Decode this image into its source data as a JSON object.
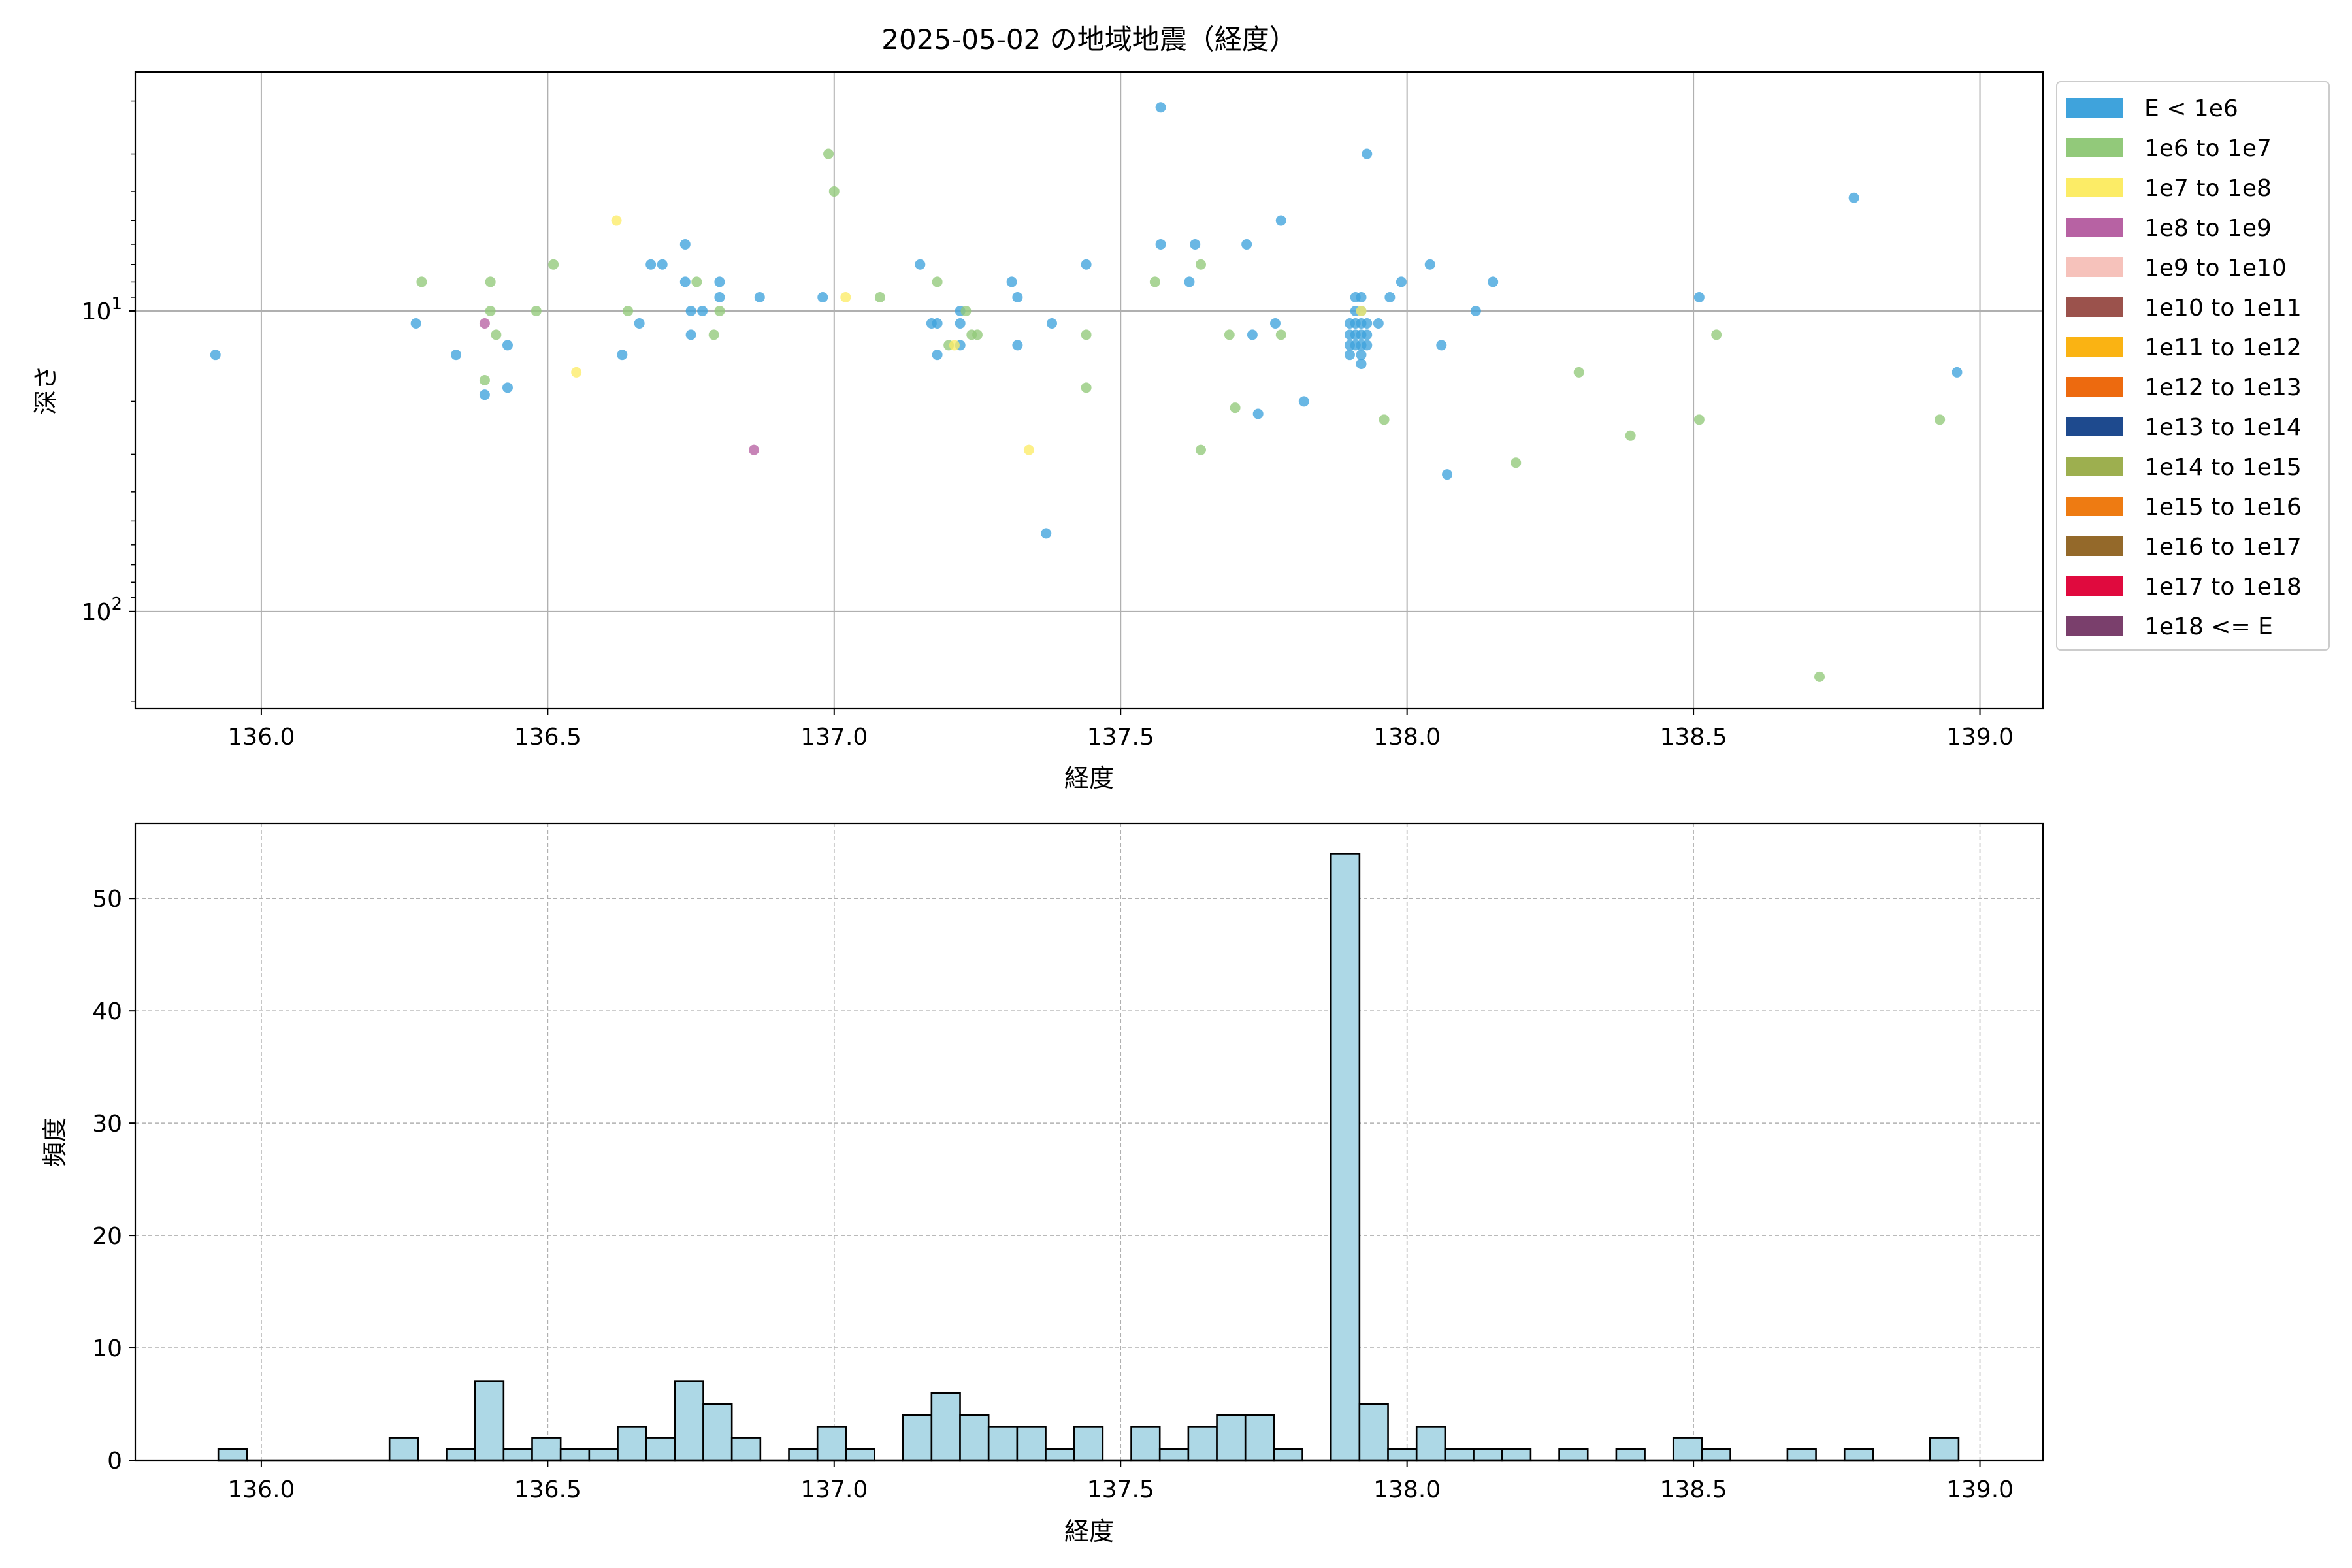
{
  "chart_data": [
    {
      "type": "scatter",
      "title": "2025-05-02 の地域地震（経度）",
      "xlabel": "経度",
      "ylabel": "深さ",
      "yscale": "log",
      "yinverted": true,
      "xlim": [
        135.78,
        139.11
      ],
      "ylim": [
        210,
        1.6
      ],
      "xticks": [
        "136.0",
        "136.5",
        "137.0",
        "137.5",
        "138.0",
        "138.5",
        "139.0"
      ],
      "yticks": [
        {
          "value": 10,
          "base": "10",
          "exp": "1"
        },
        {
          "value": 100,
          "base": "10",
          "exp": "2"
        }
      ],
      "grid": true,
      "legend": {
        "placement": "outside-right",
        "entries": [
          {
            "label": "E < 1e6",
            "color": "#3fa3dc"
          },
          {
            "label": "1e6 to 1e7",
            "color": "#92c97a"
          },
          {
            "label": "1e7 to 1e8",
            "color": "#fcec66"
          },
          {
            "label": "1e8 to 1e9",
            "color": "#b762a3"
          },
          {
            "label": "1e9 to 1e10",
            "color": "#f6c2bb"
          },
          {
            "label": "1e10 to 1e11",
            "color": "#9b524c"
          },
          {
            "label": "1e11 to 1e12",
            "color": "#fab313"
          },
          {
            "label": "1e12 to 1e13",
            "color": "#ed6a0f"
          },
          {
            "label": "1e13 to 1e14",
            "color": "#1e4a8e"
          },
          {
            "label": "1e14 to 1e15",
            "color": "#9daf4f"
          },
          {
            "label": "1e15 to 1e16",
            "color": "#ee7b12"
          },
          {
            "label": "1e16 to 1e17",
            "color": "#94692a"
          },
          {
            "label": "1e17 to 1e18",
            "color": "#e00a3e"
          },
          {
            "label": "1e18 <= E",
            "color": "#7a3f6c"
          }
        ]
      },
      "series": [
        {
          "color": "#3fa3dc",
          "points": [
            [
              135.92,
              14
            ],
            [
              136.27,
              11
            ],
            [
              136.34,
              14
            ],
            [
              136.39,
              19
            ],
            [
              136.43,
              13
            ],
            [
              136.43,
              18
            ],
            [
              136.63,
              14
            ],
            [
              136.66,
              11
            ],
            [
              136.68,
              7
            ],
            [
              136.7,
              7
            ],
            [
              136.74,
              6
            ],
            [
              136.74,
              8
            ],
            [
              136.75,
              12
            ],
            [
              136.75,
              10
            ],
            [
              136.77,
              10
            ],
            [
              136.8,
              9
            ],
            [
              136.8,
              8
            ],
            [
              136.87,
              9
            ],
            [
              136.98,
              9
            ],
            [
              137.15,
              7
            ],
            [
              137.17,
              11
            ],
            [
              137.18,
              11
            ],
            [
              137.18,
              14
            ],
            [
              137.22,
              10
            ],
            [
              137.22,
              11
            ],
            [
              137.22,
              13
            ],
            [
              137.31,
              8
            ],
            [
              137.32,
              9
            ],
            [
              137.32,
              13
            ],
            [
              137.37,
              55
            ],
            [
              137.38,
              11
            ],
            [
              137.44,
              7
            ],
            [
              137.57,
              2.1
            ],
            [
              137.57,
              6
            ],
            [
              137.62,
              8
            ],
            [
              137.63,
              6
            ],
            [
              137.72,
              6
            ],
            [
              137.73,
              12
            ],
            [
              137.74,
              22
            ],
            [
              137.77,
              11
            ],
            [
              137.78,
              5
            ],
            [
              137.82,
              20
            ],
            [
              137.93,
              3
            ],
            [
              137.9,
              11
            ],
            [
              137.9,
              12
            ],
            [
              137.9,
              13
            ],
            [
              137.9,
              14
            ],
            [
              137.91,
              9
            ],
            [
              137.91,
              10
            ],
            [
              137.91,
              11
            ],
            [
              137.91,
              12
            ],
            [
              137.91,
              13
            ],
            [
              137.92,
              9
            ],
            [
              137.92,
              10
            ],
            [
              137.92,
              11
            ],
            [
              137.92,
              12
            ],
            [
              137.92,
              13
            ],
            [
              137.92,
              14
            ],
            [
              137.92,
              15
            ],
            [
              137.93,
              11
            ],
            [
              137.93,
              12
            ],
            [
              137.93,
              13
            ],
            [
              137.95,
              11
            ],
            [
              137.97,
              9
            ],
            [
              137.99,
              8
            ],
            [
              138.04,
              7
            ],
            [
              138.06,
              13
            ],
            [
              138.07,
              35
            ],
            [
              138.12,
              10
            ],
            [
              138.15,
              8
            ],
            [
              138.51,
              9
            ],
            [
              138.78,
              4.2
            ],
            [
              138.96,
              16
            ]
          ]
        },
        {
          "color": "#92c97a",
          "points": [
            [
              136.28,
              8
            ],
            [
              136.39,
              17
            ],
            [
              136.4,
              8
            ],
            [
              136.4,
              10
            ],
            [
              136.41,
              12
            ],
            [
              136.48,
              10
            ],
            [
              136.51,
              7
            ],
            [
              136.64,
              10
            ],
            [
              136.76,
              8
            ],
            [
              136.79,
              12
            ],
            [
              136.8,
              10
            ],
            [
              136.99,
              3
            ],
            [
              137.0,
              4
            ],
            [
              137.08,
              9
            ],
            [
              137.18,
              8
            ],
            [
              137.2,
              13
            ],
            [
              137.23,
              10
            ],
            [
              137.24,
              12
            ],
            [
              137.25,
              12
            ],
            [
              137.44,
              12
            ],
            [
              137.44,
              18
            ],
            [
              137.56,
              8
            ],
            [
              137.64,
              7
            ],
            [
              137.64,
              29
            ],
            [
              137.69,
              12
            ],
            [
              137.7,
              21
            ],
            [
              137.78,
              12
            ],
            [
              137.96,
              23
            ],
            [
              138.19,
              32
            ],
            [
              138.3,
              16
            ],
            [
              138.39,
              26
            ],
            [
              138.51,
              23
            ],
            [
              138.54,
              12
            ],
            [
              138.72,
              165
            ],
            [
              138.93,
              23
            ]
          ]
        },
        {
          "color": "#fcec66",
          "points": [
            [
              136.55,
              16
            ],
            [
              136.62,
              5
            ],
            [
              137.02,
              9
            ],
            [
              137.34,
              29
            ],
            [
              137.21,
              13
            ],
            [
              137.92,
              10
            ]
          ]
        },
        {
          "color": "#b762a3",
          "points": [
            [
              136.39,
              11
            ],
            [
              136.86,
              29
            ]
          ]
        }
      ]
    },
    {
      "type": "bar",
      "subtype": "histogram",
      "xlabel": "経度",
      "ylabel": "頻度",
      "xlim": [
        135.78,
        139.11
      ],
      "ylim": [
        0,
        56.7
      ],
      "xticks": [
        "136.0",
        "136.5",
        "137.0",
        "137.5",
        "138.0",
        "138.5",
        "139.0"
      ],
      "yticks": [
        "0",
        "10",
        "20",
        "30",
        "40",
        "50"
      ],
      "grid": true,
      "bin_start": 135.925,
      "bin_width": 0.0498,
      "bar_color": "#add8e6",
      "values": [
        1,
        0,
        0,
        0,
        0,
        0,
        2,
        0,
        1,
        7,
        1,
        2,
        1,
        1,
        3,
        2,
        7,
        5,
        2,
        0,
        1,
        3,
        1,
        0,
        4,
        6,
        4,
        3,
        3,
        1,
        3,
        0,
        3,
        1,
        3,
        4,
        4,
        1,
        0,
        54,
        5,
        1,
        3,
        1,
        1,
        1,
        0,
        1,
        0,
        1,
        0,
        2,
        1,
        0,
        0,
        1,
        0,
        1,
        0,
        0,
        2
      ]
    }
  ]
}
